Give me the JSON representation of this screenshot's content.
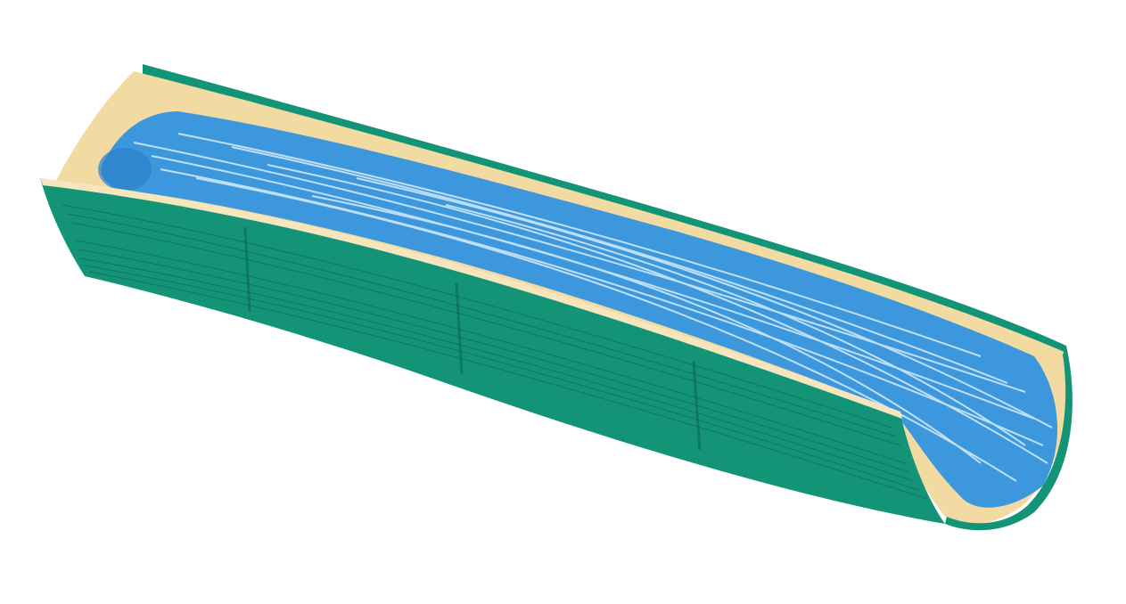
{
  "illustration": {
    "subject": "bamboo-trough-with-water",
    "colors": {
      "background": "#ffffff",
      "outer_green": "#149477",
      "outer_green_dark": "#0f7a62",
      "grain_line": "#0b5e4a",
      "inner_cream": "#f2dba3",
      "inner_cream_light": "#f7e6bd",
      "water_blue": "#3d97dc",
      "water_blue_dark": "#2b80c9",
      "water_highlight": "#d6ecfb"
    }
  }
}
